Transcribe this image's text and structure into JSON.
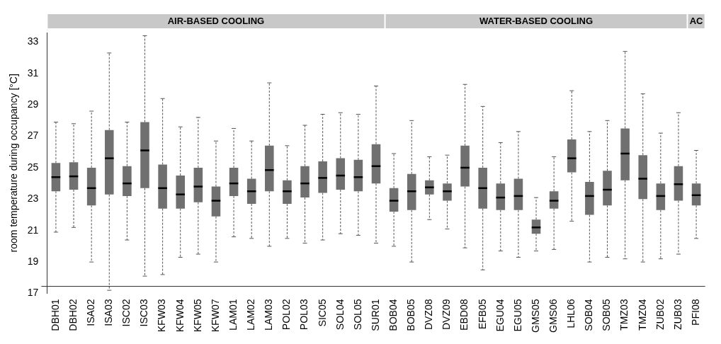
{
  "chart_data": {
    "type": "box",
    "ylabel": "room temperature during occupancy [°C]",
    "categories": [
      "DBH01",
      "DBH02",
      "ISA02",
      "ISA03",
      "ISC02",
      "ISC03",
      "KFW03",
      "KFW04",
      "KFW05",
      "KFW07",
      "LAM01",
      "LAM02",
      "LAM03",
      "POL02",
      "POL03",
      "SIC05",
      "SOL04",
      "SOL05",
      "SUR01",
      "BOB04",
      "BOB05",
      "DVZ08",
      "DVZ09",
      "EBD08",
      "EFB05",
      "EGU04",
      "EGU05",
      "GMS05",
      "GMS06",
      "LHL06",
      "SOB04",
      "SOB05",
      "TMZ03",
      "TMZ04",
      "ZUB02",
      "ZUB03",
      "PFI08"
    ],
    "color": "#707070",
    "boxes": [
      {
        "low": 20.9,
        "q1": 23.5,
        "median": 24.4,
        "q3": 25.3,
        "high": 27.9
      },
      {
        "low": 21.2,
        "q1": 23.6,
        "median": 24.45,
        "q3": 25.35,
        "high": 27.8
      },
      {
        "low": 19.0,
        "q1": 22.6,
        "median": 23.7,
        "q3": 25.0,
        "high": 28.6
      },
      {
        "low": 17.2,
        "q1": 23.3,
        "median": 25.6,
        "q3": 27.4,
        "high": 32.3
      },
      {
        "low": 20.4,
        "q1": 23.2,
        "median": 24.0,
        "q3": 25.1,
        "high": 27.9
      },
      {
        "low": 18.1,
        "q1": 23.7,
        "median": 26.1,
        "q3": 27.9,
        "high": 33.4
      },
      {
        "low": 18.2,
        "q1": 22.4,
        "median": 23.7,
        "q3": 25.2,
        "high": 29.4
      },
      {
        "low": 19.3,
        "q1": 22.4,
        "median": 23.3,
        "q3": 24.5,
        "high": 27.6
      },
      {
        "low": 19.5,
        "q1": 22.8,
        "median": 23.8,
        "q3": 25.0,
        "high": 28.2
      },
      {
        "low": 19.0,
        "q1": 21.9,
        "median": 22.9,
        "q3": 23.8,
        "high": 26.7
      },
      {
        "low": 20.6,
        "q1": 23.2,
        "median": 24.0,
        "q3": 25.0,
        "high": 27.5
      },
      {
        "low": 20.5,
        "q1": 22.7,
        "median": 23.5,
        "q3": 24.3,
        "high": 26.7
      },
      {
        "low": 20.0,
        "q1": 23.5,
        "median": 24.85,
        "q3": 26.4,
        "high": 30.4
      },
      {
        "low": 20.5,
        "q1": 22.7,
        "median": 23.5,
        "q3": 24.2,
        "high": 26.4
      },
      {
        "low": 20.2,
        "q1": 23.1,
        "median": 24.0,
        "q3": 25.1,
        "high": 27.7
      },
      {
        "low": 20.4,
        "q1": 23.4,
        "median": 24.35,
        "q3": 25.4,
        "high": 28.4
      },
      {
        "low": 20.8,
        "q1": 23.6,
        "median": 24.5,
        "q3": 25.6,
        "high": 28.5
      },
      {
        "low": 20.7,
        "q1": 23.5,
        "median": 24.4,
        "q3": 25.5,
        "high": 28.4
      },
      {
        "low": 20.2,
        "q1": 24.0,
        "median": 25.1,
        "q3": 26.5,
        "high": 30.2
      },
      {
        "low": 20.0,
        "q1": 22.2,
        "median": 22.9,
        "q3": 23.7,
        "high": 25.9
      },
      {
        "low": 19.0,
        "q1": 22.3,
        "median": 23.5,
        "q3": 24.6,
        "high": 28.0
      },
      {
        "low": 21.7,
        "q1": 23.3,
        "median": 23.75,
        "q3": 24.2,
        "high": 25.7
      },
      {
        "low": 21.1,
        "q1": 22.9,
        "median": 23.5,
        "q3": 24.0,
        "high": 25.8
      },
      {
        "low": 19.9,
        "q1": 23.8,
        "median": 25.0,
        "q3": 26.4,
        "high": 30.3
      },
      {
        "low": 18.5,
        "q1": 22.4,
        "median": 23.7,
        "q3": 25.0,
        "high": 28.9
      },
      {
        "low": 19.7,
        "q1": 22.3,
        "median": 23.1,
        "q3": 24.0,
        "high": 26.6
      },
      {
        "low": 19.3,
        "q1": 22.3,
        "median": 23.2,
        "q3": 24.3,
        "high": 27.3
      },
      {
        "low": 19.7,
        "q1": 20.8,
        "median": 21.2,
        "q3": 21.7,
        "high": 23.1
      },
      {
        "low": 19.8,
        "q1": 22.4,
        "median": 22.9,
        "q3": 23.5,
        "high": 25.7
      },
      {
        "low": 21.6,
        "q1": 24.7,
        "median": 25.6,
        "q3": 26.8,
        "high": 29.9
      },
      {
        "low": 19.0,
        "q1": 22.0,
        "median": 23.2,
        "q3": 24.1,
        "high": 27.3
      },
      {
        "low": 19.3,
        "q1": 22.6,
        "median": 23.6,
        "q3": 24.8,
        "high": 28.0
      },
      {
        "low": 19.2,
        "q1": 24.2,
        "median": 25.9,
        "q3": 27.5,
        "high": 32.4
      },
      {
        "low": 19.0,
        "q1": 23.0,
        "median": 24.3,
        "q3": 25.8,
        "high": 29.7
      },
      {
        "low": 19.2,
        "q1": 22.3,
        "median": 23.2,
        "q3": 24.0,
        "high": 27.2
      },
      {
        "low": 19.5,
        "q1": 22.9,
        "median": 23.95,
        "q3": 25.1,
        "high": 28.5
      },
      {
        "low": 20.5,
        "q1": 22.6,
        "median": 23.25,
        "q3": 24.0,
        "high": 26.1
      }
    ],
    "ylim": [
      17,
      33.6
    ],
    "yticks": [
      17,
      19,
      21,
      23,
      25,
      27,
      29,
      31,
      33
    ],
    "grid": false,
    "legend": false,
    "annotations": [
      "AIR-BASED COOLING",
      "WATER-BASED COOLING",
      "AC"
    ]
  }
}
